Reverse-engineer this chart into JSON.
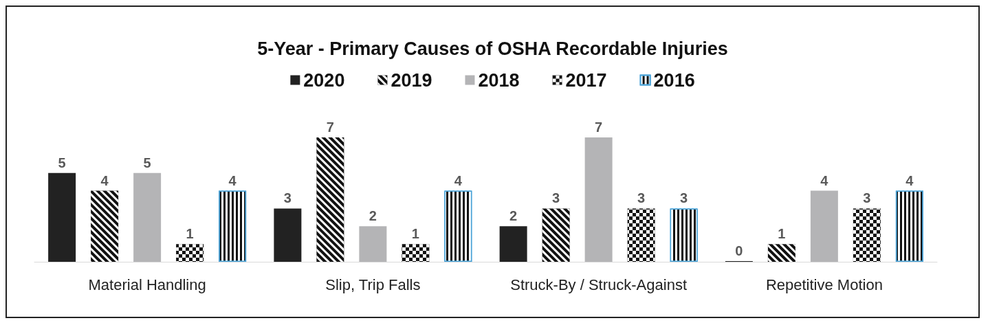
{
  "chart_data": {
    "type": "bar",
    "title": "5-Year - Primary Causes of OSHA Recordable Injuries",
    "categories": [
      "Material Handling",
      "Slip, Trip Falls",
      "Struck-By / Struck-Against",
      "Repetitive Motion"
    ],
    "series": [
      {
        "name": "2020",
        "color": "#222222",
        "values": [
          5,
          3,
          2,
          0
        ]
      },
      {
        "name": "2019",
        "color": "#111111",
        "values": [
          4,
          7,
          3,
          1
        ]
      },
      {
        "name": "2018",
        "color": "#b4b4b6",
        "values": [
          5,
          2,
          7,
          4
        ]
      },
      {
        "name": "2017",
        "color": "#111111",
        "values": [
          1,
          1,
          3,
          3
        ]
      },
      {
        "name": "2016",
        "color": "#111111",
        "values": [
          4,
          4,
          3,
          4
        ]
      }
    ],
    "data_labels": true,
    "legend": "top"
  }
}
